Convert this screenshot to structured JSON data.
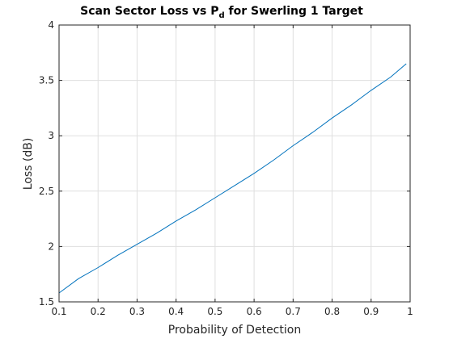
{
  "chart_data": {
    "type": "line",
    "title": "Scan Sector Loss vs P",
    "title_subscript": "d",
    "title_suffix": " for Swerling 1 Target",
    "xlabel": "Probability of Detection",
    "ylabel": "Loss (dB)",
    "xlim": [
      0.1,
      1
    ],
    "ylim": [
      1.5,
      4
    ],
    "x_ticks": [
      0.1,
      0.2,
      0.3,
      0.4,
      0.5,
      0.6,
      0.7,
      0.8,
      0.9,
      1
    ],
    "x_tick_labels": [
      "0.1",
      "0.2",
      "0.3",
      "0.4",
      "0.5",
      "0.6",
      "0.7",
      "0.8",
      "0.9",
      "1"
    ],
    "y_ticks": [
      1.5,
      2,
      2.5,
      3,
      3.5,
      4
    ],
    "y_tick_labels": [
      "1.5",
      "2",
      "2.5",
      "3",
      "3.5",
      "4"
    ],
    "grid": true,
    "series": [
      {
        "color": "#0072BD",
        "x": [
          0.1,
          0.15,
          0.2,
          0.25,
          0.3,
          0.35,
          0.4,
          0.45,
          0.5,
          0.55,
          0.6,
          0.65,
          0.7,
          0.75,
          0.8,
          0.85,
          0.9,
          0.95,
          0.99
        ],
        "y": [
          1.58,
          1.71,
          1.81,
          1.92,
          2.02,
          2.12,
          2.23,
          2.33,
          2.44,
          2.55,
          2.66,
          2.78,
          2.91,
          3.03,
          3.16,
          3.28,
          3.41,
          3.53,
          3.65
        ]
      }
    ]
  }
}
